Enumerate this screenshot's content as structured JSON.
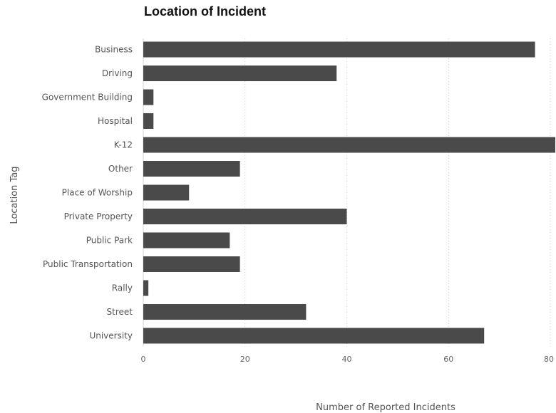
{
  "chart_data": {
    "type": "bar",
    "orientation": "horizontal",
    "title": "Location of Incident",
    "xlabel": "Number of Reported Incidents",
    "ylabel": "Location Tag",
    "categories": [
      "Business",
      "Driving",
      "Government Building",
      "Hospital",
      "K-12",
      "Other",
      "Place of Worship",
      "Private Property",
      "Public Park",
      "Public Transportation",
      "Rally",
      "Street",
      "University"
    ],
    "values": [
      77,
      38,
      2,
      2,
      82,
      19,
      9,
      40,
      17,
      19,
      1,
      32,
      67
    ],
    "xlim": [
      0,
      80
    ],
    "xticks": [
      "0",
      "20",
      "40",
      "60",
      "80"
    ],
    "grid": "vertical-dotted",
    "bar_color": "#4a4a4a"
  }
}
